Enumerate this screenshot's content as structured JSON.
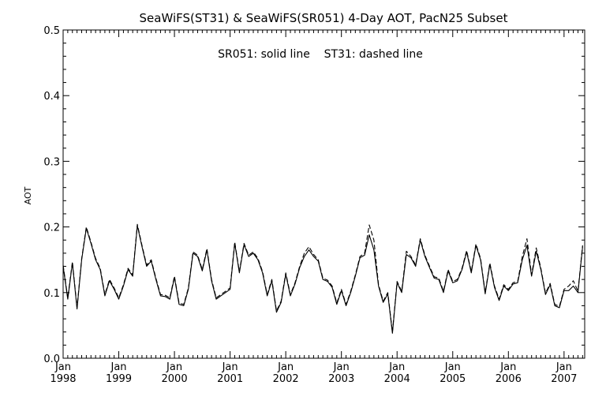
{
  "chart_data": {
    "type": "line",
    "title": "SeaWiFS(ST31) & SeaWiFS(SR051) 4-Day AOT, PacN25 Subset",
    "annotation": "SR051: solid line    ST31: dashed line",
    "ylabel": "AOT",
    "xlabel": "",
    "ylim": [
      0.0,
      0.5
    ],
    "yticks": [
      "0.0",
      "0.1",
      "0.2",
      "0.3",
      "0.4",
      "0.5"
    ],
    "xlim": [
      "1998-01",
      "2007-05"
    ],
    "xticks": [
      {
        "month": "Jan",
        "year": "1998"
      },
      {
        "month": "Jan",
        "year": "1999"
      },
      {
        "month": "Jan",
        "year": "2000"
      },
      {
        "month": "Jan",
        "year": "2001"
      },
      {
        "month": "Jan",
        "year": "2002"
      },
      {
        "month": "Jan",
        "year": "2003"
      },
      {
        "month": "Jan",
        "year": "2004"
      },
      {
        "month": "Jan",
        "year": "2005"
      },
      {
        "month": "Jan",
        "year": "2006"
      },
      {
        "month": "Jan",
        "year": "2007"
      }
    ],
    "grid": false,
    "line_color": "#000000",
    "series": [
      {
        "name": "SR051",
        "style": "solid",
        "points": [
          [
            "1998-01",
            0.14
          ],
          [
            "1998-02",
            0.09
          ],
          [
            "1998-03",
            0.145
          ],
          [
            "1998-04",
            0.075
          ],
          [
            "1998-05",
            0.15
          ],
          [
            "1998-06",
            0.198
          ],
          [
            "1998-07",
            0.175
          ],
          [
            "1998-08",
            0.15
          ],
          [
            "1998-09",
            0.135
          ],
          [
            "1998-10",
            0.095
          ],
          [
            "1998-11",
            0.118
          ],
          [
            "1998-12",
            0.105
          ],
          [
            "1999-01",
            0.09
          ],
          [
            "1999-02",
            0.11
          ],
          [
            "1999-03",
            0.135
          ],
          [
            "1999-04",
            0.125
          ],
          [
            "1999-05",
            0.202
          ],
          [
            "1999-06",
            0.17
          ],
          [
            "1999-07",
            0.14
          ],
          [
            "1999-08",
            0.148
          ],
          [
            "1999-09",
            0.12
          ],
          [
            "1999-10",
            0.095
          ],
          [
            "1999-11",
            0.094
          ],
          [
            "1999-12",
            0.09
          ],
          [
            "2000-01",
            0.123
          ],
          [
            "2000-02",
            0.082
          ],
          [
            "2000-03",
            0.08
          ],
          [
            "2000-04",
            0.105
          ],
          [
            "2000-05",
            0.16
          ],
          [
            "2000-06",
            0.155
          ],
          [
            "2000-07",
            0.133
          ],
          [
            "2000-08",
            0.165
          ],
          [
            "2000-09",
            0.118
          ],
          [
            "2000-10",
            0.09
          ],
          [
            "2000-11",
            0.095
          ],
          [
            "2000-12",
            0.1
          ],
          [
            "2001-01",
            0.105
          ],
          [
            "2001-02",
            0.175
          ],
          [
            "2001-03",
            0.13
          ],
          [
            "2001-04",
            0.173
          ],
          [
            "2001-05",
            0.155
          ],
          [
            "2001-06",
            0.16
          ],
          [
            "2001-07",
            0.15
          ],
          [
            "2001-08",
            0.13
          ],
          [
            "2001-09",
            0.095
          ],
          [
            "2001-10",
            0.118
          ],
          [
            "2001-11",
            0.07
          ],
          [
            "2001-12",
            0.085
          ],
          [
            "2002-01",
            0.128
          ],
          [
            "2002-02",
            0.095
          ],
          [
            "2002-03",
            0.113
          ],
          [
            "2002-04",
            0.138
          ],
          [
            "2002-05",
            0.155
          ],
          [
            "2002-06",
            0.165
          ],
          [
            "2002-07",
            0.155
          ],
          [
            "2002-08",
            0.148
          ],
          [
            "2002-09",
            0.12
          ],
          [
            "2002-10",
            0.117
          ],
          [
            "2002-11",
            0.108
          ],
          [
            "2002-12",
            0.082
          ],
          [
            "2003-01",
            0.103
          ],
          [
            "2003-02",
            0.08
          ],
          [
            "2003-03",
            0.1
          ],
          [
            "2003-04",
            0.125
          ],
          [
            "2003-05",
            0.153
          ],
          [
            "2003-06",
            0.157
          ],
          [
            "2003-07",
            0.188
          ],
          [
            "2003-08",
            0.165
          ],
          [
            "2003-09",
            0.11
          ],
          [
            "2003-10",
            0.085
          ],
          [
            "2003-11",
            0.098
          ],
          [
            "2003-12",
            0.038
          ],
          [
            "2004-01",
            0.115
          ],
          [
            "2004-02",
            0.1
          ],
          [
            "2004-03",
            0.158
          ],
          [
            "2004-04",
            0.153
          ],
          [
            "2004-05",
            0.14
          ],
          [
            "2004-06",
            0.18
          ],
          [
            "2004-07",
            0.155
          ],
          [
            "2004-08",
            0.138
          ],
          [
            "2004-09",
            0.122
          ],
          [
            "2004-10",
            0.12
          ],
          [
            "2004-11",
            0.1
          ],
          [
            "2004-12",
            0.133
          ],
          [
            "2005-01",
            0.115
          ],
          [
            "2005-02",
            0.118
          ],
          [
            "2005-03",
            0.135
          ],
          [
            "2005-04",
            0.162
          ],
          [
            "2005-05",
            0.13
          ],
          [
            "2005-06",
            0.172
          ],
          [
            "2005-07",
            0.15
          ],
          [
            "2005-08",
            0.098
          ],
          [
            "2005-09",
            0.143
          ],
          [
            "2005-10",
            0.108
          ],
          [
            "2005-11",
            0.088
          ],
          [
            "2005-12",
            0.11
          ],
          [
            "2006-01",
            0.103
          ],
          [
            "2006-02",
            0.113
          ],
          [
            "2006-03",
            0.115
          ],
          [
            "2006-04",
            0.15
          ],
          [
            "2006-05",
            0.172
          ],
          [
            "2006-06",
            0.125
          ],
          [
            "2006-07",
            0.163
          ],
          [
            "2006-08",
            0.135
          ],
          [
            "2006-09",
            0.097
          ],
          [
            "2006-10",
            0.112
          ],
          [
            "2006-11",
            0.08
          ],
          [
            "2006-12",
            0.077
          ],
          [
            "2007-01",
            0.103
          ],
          [
            "2007-02",
            0.103
          ],
          [
            "2007-03",
            0.11
          ],
          [
            "2007-04",
            0.1
          ],
          [
            "2007-05",
            0.17
          ]
        ]
      },
      {
        "name": "ST31",
        "style": "dashed",
        "points": [
          [
            "1998-01",
            0.142
          ],
          [
            "1998-02",
            0.092
          ],
          [
            "1998-03",
            0.147
          ],
          [
            "1998-04",
            0.077
          ],
          [
            "1998-05",
            0.152
          ],
          [
            "1998-06",
            0.2
          ],
          [
            "1998-07",
            0.177
          ],
          [
            "1998-08",
            0.152
          ],
          [
            "1998-09",
            0.137
          ],
          [
            "1998-10",
            0.097
          ],
          [
            "1998-11",
            0.12
          ],
          [
            "1998-12",
            0.107
          ],
          [
            "1999-01",
            0.092
          ],
          [
            "1999-02",
            0.112
          ],
          [
            "1999-03",
            0.137
          ],
          [
            "1999-04",
            0.127
          ],
          [
            "1999-05",
            0.204
          ],
          [
            "1999-06",
            0.172
          ],
          [
            "1999-07",
            0.142
          ],
          [
            "1999-08",
            0.15
          ],
          [
            "1999-09",
            0.122
          ],
          [
            "1999-10",
            0.097
          ],
          [
            "1999-11",
            0.096
          ],
          [
            "1999-12",
            0.092
          ],
          [
            "2000-01",
            0.125
          ],
          [
            "2000-02",
            0.084
          ],
          [
            "2000-03",
            0.082
          ],
          [
            "2000-04",
            0.107
          ],
          [
            "2000-05",
            0.162
          ],
          [
            "2000-06",
            0.157
          ],
          [
            "2000-07",
            0.135
          ],
          [
            "2000-08",
            0.167
          ],
          [
            "2000-09",
            0.12
          ],
          [
            "2000-10",
            0.092
          ],
          [
            "2000-11",
            0.097
          ],
          [
            "2000-12",
            0.102
          ],
          [
            "2001-01",
            0.107
          ],
          [
            "2001-02",
            0.177
          ],
          [
            "2001-03",
            0.132
          ],
          [
            "2001-04",
            0.175
          ],
          [
            "2001-05",
            0.157
          ],
          [
            "2001-06",
            0.162
          ],
          [
            "2001-07",
            0.152
          ],
          [
            "2001-08",
            0.132
          ],
          [
            "2001-09",
            0.097
          ],
          [
            "2001-10",
            0.12
          ],
          [
            "2001-11",
            0.072
          ],
          [
            "2001-12",
            0.087
          ],
          [
            "2002-01",
            0.13
          ],
          [
            "2002-02",
            0.097
          ],
          [
            "2002-03",
            0.115
          ],
          [
            "2002-04",
            0.14
          ],
          [
            "2002-05",
            0.16
          ],
          [
            "2002-06",
            0.17
          ],
          [
            "2002-07",
            0.158
          ],
          [
            "2002-08",
            0.15
          ],
          [
            "2002-09",
            0.122
          ],
          [
            "2002-10",
            0.119
          ],
          [
            "2002-11",
            0.11
          ],
          [
            "2002-12",
            0.084
          ],
          [
            "2003-01",
            0.105
          ],
          [
            "2003-02",
            0.082
          ],
          [
            "2003-03",
            0.102
          ],
          [
            "2003-04",
            0.127
          ],
          [
            "2003-05",
            0.155
          ],
          [
            "2003-06",
            0.16
          ],
          [
            "2003-07",
            0.203
          ],
          [
            "2003-08",
            0.18
          ],
          [
            "2003-09",
            0.112
          ],
          [
            "2003-10",
            0.087
          ],
          [
            "2003-11",
            0.1
          ],
          [
            "2003-12",
            0.04
          ],
          [
            "2004-01",
            0.117
          ],
          [
            "2004-02",
            0.102
          ],
          [
            "2004-03",
            0.163
          ],
          [
            "2004-04",
            0.155
          ],
          [
            "2004-05",
            0.142
          ],
          [
            "2004-06",
            0.182
          ],
          [
            "2004-07",
            0.157
          ],
          [
            "2004-08",
            0.14
          ],
          [
            "2004-09",
            0.124
          ],
          [
            "2004-10",
            0.122
          ],
          [
            "2004-11",
            0.102
          ],
          [
            "2004-12",
            0.135
          ],
          [
            "2005-01",
            0.117
          ],
          [
            "2005-02",
            0.12
          ],
          [
            "2005-03",
            0.137
          ],
          [
            "2005-04",
            0.164
          ],
          [
            "2005-05",
            0.132
          ],
          [
            "2005-06",
            0.174
          ],
          [
            "2005-07",
            0.152
          ],
          [
            "2005-08",
            0.1
          ],
          [
            "2005-09",
            0.145
          ],
          [
            "2005-10",
            0.11
          ],
          [
            "2005-11",
            0.09
          ],
          [
            "2005-12",
            0.112
          ],
          [
            "2006-01",
            0.105
          ],
          [
            "2006-02",
            0.115
          ],
          [
            "2006-03",
            0.117
          ],
          [
            "2006-04",
            0.155
          ],
          [
            "2006-05",
            0.182
          ],
          [
            "2006-06",
            0.127
          ],
          [
            "2006-07",
            0.168
          ],
          [
            "2006-08",
            0.137
          ],
          [
            "2006-09",
            0.099
          ],
          [
            "2006-10",
            0.114
          ],
          [
            "2006-11",
            0.082
          ],
          [
            "2006-12",
            0.079
          ],
          [
            "2007-01",
            0.105
          ],
          [
            "2007-02",
            0.11
          ],
          [
            "2007-03",
            0.118
          ],
          [
            "2007-04",
            0.102
          ],
          [
            "2007-05",
            0.172
          ]
        ]
      }
    ]
  }
}
